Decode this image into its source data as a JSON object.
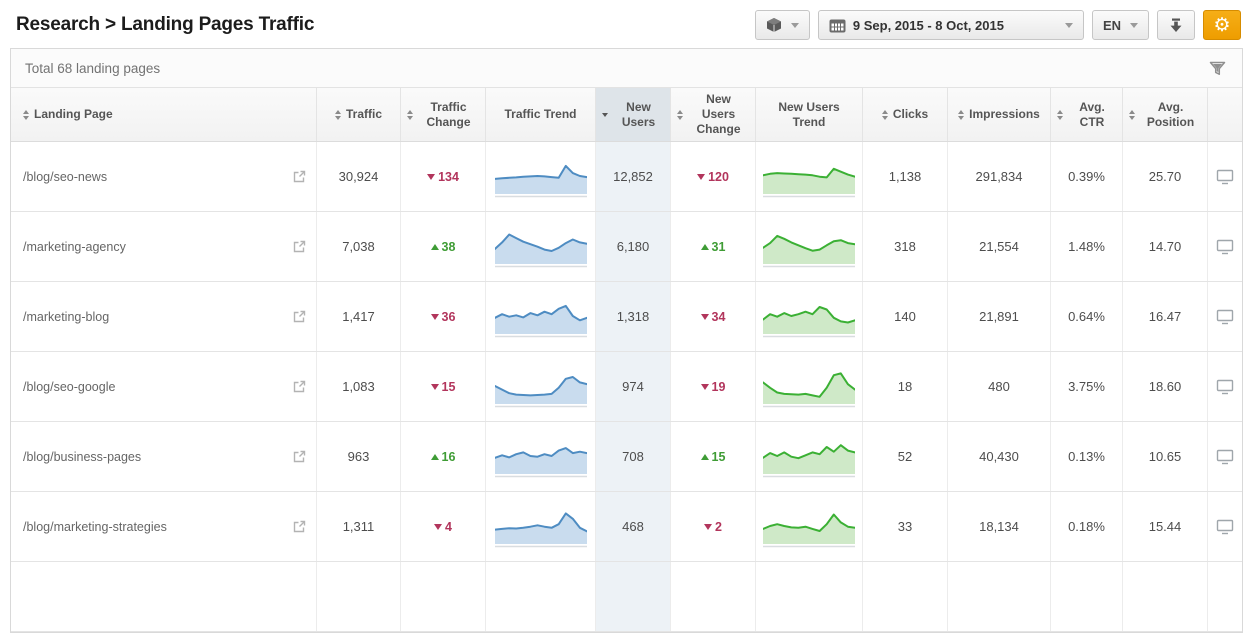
{
  "header": {
    "title": "Research > Landing Pages Traffic",
    "controls": {
      "date_range": "9 Sep, 2015 - 8 Oct, 2015",
      "language": "EN"
    }
  },
  "panel": {
    "summary": "Total 68 landing pages"
  },
  "table": {
    "columns": [
      {
        "id": "landing_page",
        "label": "Landing Page",
        "sortable": true
      },
      {
        "id": "traffic",
        "label": "Traffic",
        "sortable": true
      },
      {
        "id": "traffic_change",
        "label": "Traffic Change",
        "sortable": true
      },
      {
        "id": "traffic_trend",
        "label": "Traffic Trend",
        "sortable": false
      },
      {
        "id": "new_users",
        "label": "New Users",
        "sortable": true,
        "sorted": "desc"
      },
      {
        "id": "new_users_change",
        "label": "New Users Change",
        "sortable": true
      },
      {
        "id": "new_users_trend",
        "label": "New Users Trend",
        "sortable": false
      },
      {
        "id": "clicks",
        "label": "Clicks",
        "sortable": true
      },
      {
        "id": "impressions",
        "label": "Impressions",
        "sortable": true
      },
      {
        "id": "avg_ctr",
        "label": "Avg. CTR",
        "sortable": true
      },
      {
        "id": "avg_position",
        "label": "Avg. Position",
        "sortable": true
      }
    ],
    "rows": [
      {
        "landing_page": "/blog/seo-news",
        "traffic": "30,924",
        "traffic_change": {
          "dir": "down",
          "value": "134"
        },
        "traffic_trend": [
          42,
          44,
          45,
          46,
          48,
          49,
          50,
          49,
          47,
          45,
          78,
          58,
          50,
          47
        ],
        "new_users": "12,852",
        "new_users_change": {
          "dir": "down",
          "value": "120"
        },
        "new_users_trend": [
          52,
          56,
          58,
          57,
          56,
          55,
          54,
          52,
          48,
          46,
          70,
          62,
          54,
          48
        ],
        "clicks": "1,138",
        "impressions": "291,834",
        "avg_ctr": "0.39%",
        "avg_position": "25.70"
      },
      {
        "landing_page": "/marketing-agency",
        "traffic": "7,038",
        "traffic_change": {
          "dir": "up",
          "value": "38"
        },
        "traffic_trend": [
          42,
          60,
          82,
          72,
          62,
          55,
          48,
          40,
          36,
          45,
          58,
          68,
          60,
          56
        ],
        "new_users": "6,180",
        "new_users_change": {
          "dir": "up",
          "value": "31"
        },
        "new_users_trend": [
          45,
          58,
          78,
          70,
          60,
          52,
          44,
          37,
          40,
          52,
          63,
          66,
          58,
          55
        ],
        "clicks": "318",
        "impressions": "21,554",
        "avg_ctr": "1.48%",
        "avg_position": "14.70"
      },
      {
        "landing_page": "/marketing-blog",
        "traffic": "1,417",
        "traffic_change": {
          "dir": "down",
          "value": "36"
        },
        "traffic_trend": [
          45,
          55,
          48,
          52,
          46,
          58,
          52,
          62,
          55,
          70,
          78,
          50,
          38,
          45
        ],
        "new_users": "1,318",
        "new_users_change": {
          "dir": "down",
          "value": "34"
        },
        "new_users_trend": [
          40,
          55,
          48,
          58,
          50,
          55,
          62,
          55,
          75,
          68,
          45,
          35,
          32,
          38
        ],
        "clicks": "140",
        "impressions": "21,891",
        "avg_ctr": "0.64%",
        "avg_position": "16.47"
      },
      {
        "landing_page": "/blog/seo-google",
        "traffic": "1,083",
        "traffic_change": {
          "dir": "down",
          "value": "15"
        },
        "traffic_trend": [
          50,
          40,
          30,
          26,
          25,
          24,
          25,
          26,
          28,
          45,
          70,
          75,
          60,
          55
        ],
        "new_users": "974",
        "new_users_change": {
          "dir": "down",
          "value": "19"
        },
        "new_users_trend": [
          60,
          45,
          32,
          28,
          27,
          26,
          28,
          24,
          20,
          45,
          80,
          85,
          55,
          40
        ],
        "clicks": "18",
        "impressions": "480",
        "avg_ctr": "3.75%",
        "avg_position": "18.60"
      },
      {
        "landing_page": "/blog/business-pages",
        "traffic": "963",
        "traffic_change": {
          "dir": "up",
          "value": "16"
        },
        "traffic_trend": [
          45,
          52,
          46,
          55,
          60,
          50,
          48,
          55,
          50,
          65,
          72,
          58,
          62,
          58
        ],
        "new_users": "708",
        "new_users_change": {
          "dir": "up",
          "value": "15"
        },
        "new_users_trend": [
          45,
          58,
          50,
          60,
          48,
          44,
          52,
          60,
          55,
          75,
          62,
          80,
          65,
          60
        ],
        "clicks": "52",
        "impressions": "40,430",
        "avg_ctr": "0.13%",
        "avg_position": "10.65"
      },
      {
        "landing_page": "/blog/marketing-strategies",
        "traffic": "1,311",
        "traffic_change": {
          "dir": "down",
          "value": "4"
        },
        "traffic_trend": [
          40,
          42,
          44,
          43,
          45,
          48,
          52,
          48,
          45,
          55,
          85,
          70,
          45,
          35
        ],
        "new_users": "468",
        "new_users_change": {
          "dir": "down",
          "value": "2"
        },
        "new_users_trend": [
          42,
          50,
          55,
          50,
          46,
          45,
          48,
          42,
          36,
          55,
          82,
          60,
          48,
          45
        ],
        "clicks": "33",
        "impressions": "18,134",
        "avg_ctr": "0.18%",
        "avg_position": "15.44"
      }
    ]
  },
  "colors": {
    "accent_orange": "#f0a400",
    "positive": "#3f9c35",
    "negative": "#b2355c",
    "traffic_line": "#4e8cc2",
    "traffic_fill": "#c9dcee",
    "users_line": "#3bb034",
    "users_fill": "#cfe9c8",
    "sorted_header_bg": "#dee4e9",
    "sorted_cell_bg": "#edf2f6"
  }
}
